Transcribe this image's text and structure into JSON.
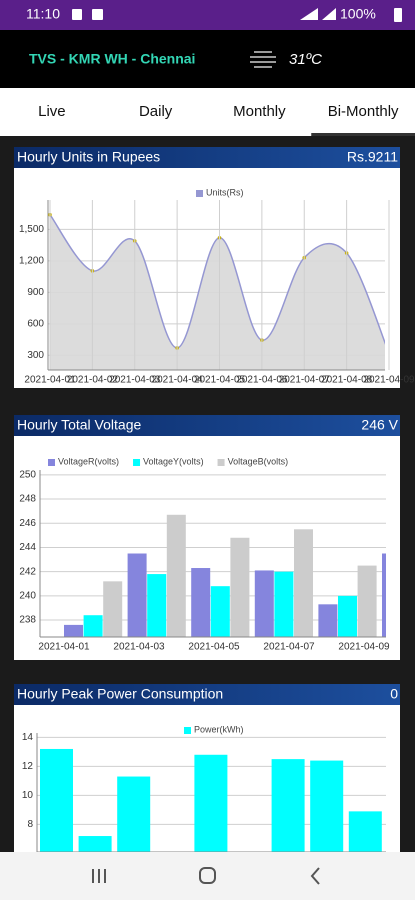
{
  "status_bar": {
    "time": "11:10",
    "battery": "100%"
  },
  "header": {
    "site": "TVS - KMR WH - Chennai",
    "temperature": "31ºC"
  },
  "tabs": [
    "Live",
    "Daily",
    "Monthly",
    "Bi-Monthly"
  ],
  "selected_tab": 3,
  "chart_data": [
    {
      "type": "line",
      "title": "Hourly Units in Rupees",
      "total": "Rs.9211",
      "categories": [
        "2021-04-01",
        "2021-04-02",
        "2021-04-03",
        "2021-04-04",
        "2021-04-05",
        "2021-04-06",
        "2021-04-07",
        "2021-04-08",
        "2021-04-09"
      ],
      "series": [
        {
          "name": "Units(Rs)",
          "color": "#9597d2",
          "values": [
            1640,
            1105,
            1390,
            370,
            1420,
            445,
            1230,
            1275,
            320
          ]
        }
      ],
      "ylim": [
        160,
        1780
      ],
      "yticks": [
        300,
        600,
        900,
        {
          "value": 1200,
          "label": "1,200"
        },
        {
          "value": 1500,
          "label": "1,500"
        }
      ],
      "grid": true
    },
    {
      "type": "bar",
      "title": "Hourly Total Voltage",
      "total": "246 V",
      "categories": [
        "2021-04-01",
        "2021-04-03",
        "2021-04-05",
        "2021-04-07",
        "2021-04-09",
        null
      ],
      "series": [
        {
          "name": "VoltageR(volts)",
          "color": "#8585dd",
          "values": [
            237.6,
            243.5,
            242.3,
            242.1,
            239.3,
            243.5
          ]
        },
        {
          "name": "VoltageY(volts)",
          "color": "#00ffff",
          "values": [
            238.4,
            241.8,
            240.8,
            242.0,
            240.0,
            null
          ]
        },
        {
          "name": "VoltageB(volts)",
          "color": "#cccccc",
          "values": [
            241.2,
            246.7,
            244.8,
            245.5,
            242.5,
            null
          ]
        }
      ],
      "ylim": [
        236.6,
        250.4
      ],
      "yticks": [
        238,
        240,
        242,
        244,
        246,
        248,
        250
      ],
      "grid": true
    },
    {
      "type": "bar",
      "title": "Hourly Peak Power Consumption",
      "total": "0",
      "series": [
        {
          "name": "Power(kWh)",
          "color": "#00ffff",
          "values": [
            13.2,
            7.2,
            11.3,
            null,
            12.8,
            null,
            12.5,
            12.4,
            8.9
          ]
        }
      ],
      "ylim": [
        6.1,
        14.3
      ],
      "yticks": [
        8,
        10,
        12,
        14
      ],
      "grid": true
    }
  ]
}
